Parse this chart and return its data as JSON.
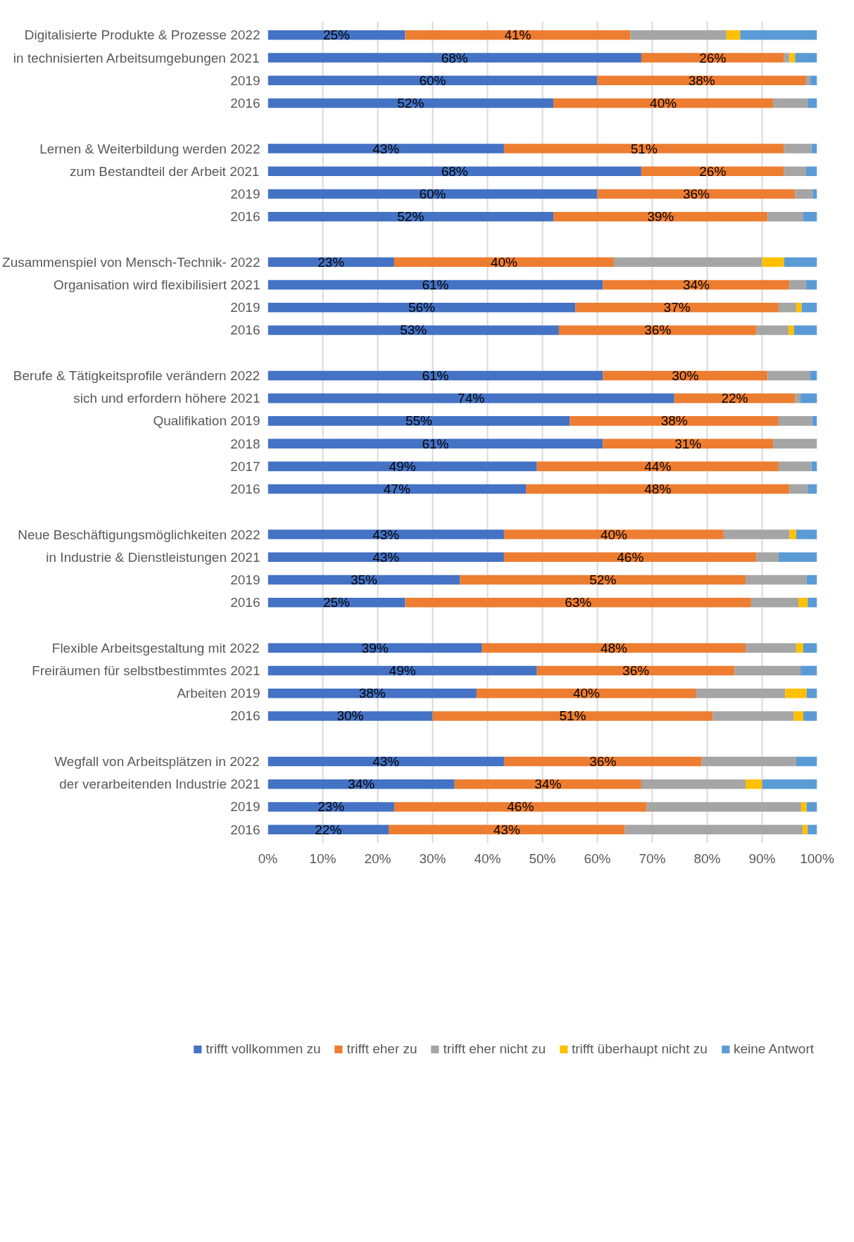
{
  "chart_data": {
    "type": "bar",
    "orientation": "horizontal",
    "stacked": true,
    "categories": [
      "Digitalisierte Produkte & Prozesse 2022",
      "in technisierten Arbeitsumgebungen 2021",
      "2019",
      "2016",
      null,
      "Lernen & Weiterbildung werden 2022",
      "zum Bestandteil der Arbeit 2021",
      "2019",
      "2016",
      null,
      "Zusammenspiel von Mensch-Technik- 2022",
      "Organisation wird flexibilisiert 2021",
      "2019",
      "2016",
      null,
      "Berufe & Tätigkeitsprofile verändern 2022",
      "sich und erfordern höhere 2021",
      "Qualifikation 2019",
      "2018",
      "2017",
      "2016",
      null,
      "Neue Beschäftigungsmöglichkeiten 2022",
      "in Industrie & Dienstleistungen 2021",
      "2019",
      "2016",
      null,
      "Flexible Arbeitsgestaltung mit 2022",
      "Freiräumen für selbstbestimmtes 2021",
      "Arbeiten 2019",
      "2016",
      null,
      "Wegfall von Arbeitsplätzen in 2022",
      "der verarbeitenden Industrie 2021",
      "2019",
      "2016"
    ],
    "series": [
      {
        "name": "trifft vollkommen zu",
        "color": "#4472c4",
        "values": [
          25,
          68,
          60,
          52,
          null,
          43,
          68,
          60,
          52,
          null,
          23,
          61,
          56,
          53,
          null,
          61,
          74,
          55,
          61,
          49,
          47,
          null,
          43,
          43,
          35,
          25,
          null,
          39,
          49,
          38,
          30,
          null,
          43,
          34,
          23,
          22
        ],
        "value_labels": [
          "25%",
          "68%",
          "60%",
          "52%",
          null,
          "43%",
          "68%",
          "60%",
          "52%",
          null,
          "23%",
          "61%",
          "56%",
          "53%",
          null,
          "61%",
          "74%",
          "55%",
          "61%",
          "49%",
          "47%",
          null,
          "43%",
          "43%",
          "35%",
          "25%",
          null,
          "39%",
          "49%",
          "38%",
          "30%",
          null,
          "43%",
          "34%",
          "23%",
          "22%"
        ]
      },
      {
        "name": "trifft eher zu",
        "color": "#ed7d31",
        "values": [
          41,
          26,
          38,
          40,
          null,
          51,
          26,
          36,
          39,
          null,
          40,
          34,
          37,
          36,
          null,
          30,
          22,
          38,
          31,
          44,
          48,
          null,
          40,
          46,
          52,
          63,
          null,
          48,
          36,
          40,
          51,
          null,
          36,
          34,
          46,
          43
        ],
        "value_labels": [
          "41%",
          "26%",
          "38%",
          "40%",
          null,
          "51%",
          "26%",
          "36%",
          "39%",
          null,
          "40%",
          "34%",
          "37%",
          "36%",
          null,
          "30%",
          "22%",
          "38%",
          "31%",
          "44%",
          "48%",
          null,
          "40%",
          "46%",
          "52%",
          "63%",
          null,
          "48%",
          "36%",
          "40%",
          "51%",
          null,
          "36%",
          "34%",
          "46%",
          "43%"
        ]
      },
      {
        "name": "trifft eher nicht zu",
        "color": "#a5a5a5",
        "values": [
          17.5,
          1,
          0.8,
          6.3,
          null,
          5,
          4,
          3.2,
          6.5,
          null,
          27,
          3,
          3.2,
          5.8,
          null,
          7.7,
          1,
          6.1,
          8,
          6,
          3.3,
          null,
          12,
          4,
          11.1,
          8.6,
          null,
          9.2,
          12,
          16.2,
          14.8,
          null,
          17.2,
          19,
          28.1,
          32.4
        ]
      },
      {
        "name": "trifft überhaupt nicht zu",
        "color": "#ffc000",
        "values": [
          2.5,
          1,
          null,
          null,
          null,
          null,
          null,
          null,
          null,
          null,
          4,
          null,
          1,
          1,
          null,
          null,
          null,
          null,
          null,
          null,
          null,
          null,
          1.2,
          null,
          null,
          1.7,
          null,
          1.3,
          null,
          3.9,
          1.7,
          null,
          null,
          3,
          1,
          0.9
        ]
      },
      {
        "name": "keine Antwort",
        "color": "#5b9bd5",
        "values": [
          14,
          4,
          1.2,
          1.7,
          null,
          1,
          2,
          0.8,
          2.5,
          null,
          6,
          2,
          2.8,
          4.2,
          null,
          1.3,
          3,
          0.9,
          null,
          1,
          1.7,
          null,
          3.8,
          7,
          1.9,
          1.7,
          null,
          2.5,
          3,
          1.9,
          2.5,
          null,
          3.8,
          10,
          1.9,
          1.7
        ]
      }
    ],
    "xlim": [
      0,
      100
    ],
    "xticks": [
      {
        "value": 0,
        "label": "0%"
      },
      {
        "value": 10,
        "label": "10%"
      },
      {
        "value": 20,
        "label": "20%"
      },
      {
        "value": 30,
        "label": "30%"
      },
      {
        "value": 40,
        "label": "40%"
      },
      {
        "value": 50,
        "label": "50%"
      },
      {
        "value": 60,
        "label": "60%"
      },
      {
        "value": 70,
        "label": "70%"
      },
      {
        "value": 80,
        "label": "80%"
      },
      {
        "value": 90,
        "label": "90%"
      },
      {
        "value": 100,
        "label": "100%"
      }
    ],
    "grid": "x",
    "legend": "bottom"
  }
}
